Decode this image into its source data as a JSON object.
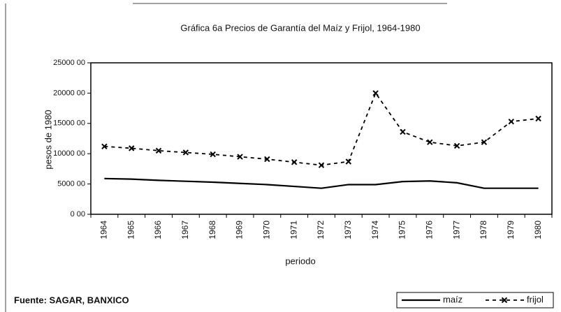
{
  "chart_data": {
    "type": "line",
    "title": "Gráfica 6a Precios de Garantía del Maíz y Frijol, 1964-1980",
    "y_label": "pesos de 1980",
    "x_label": "periodo",
    "source": "Fuente: SAGAR, BANXICO",
    "categories": [
      "1964",
      "1965",
      "1966",
      "1967",
      "1968",
      "1969",
      "1970",
      "1971",
      "1972",
      "1973",
      "1974",
      "1975",
      "1976",
      "1977",
      "1978",
      "1979",
      "1980"
    ],
    "series": [
      {
        "name": "maíz",
        "color": "#000000",
        "style": "solid",
        "values": [
          5900,
          5800,
          5600,
          5450,
          5300,
          5100,
          4900,
          4600,
          4300,
          4900,
          4900,
          5400,
          5500,
          5200,
          4300,
          4300,
          4300
        ]
      },
      {
        "name": "frijol",
        "color": "#000000",
        "style": "dashed",
        "marker": "x",
        "values": [
          11200,
          10900,
          10500,
          10200,
          9900,
          9500,
          9100,
          8600,
          8100,
          8700,
          20000,
          13600,
          11900,
          11300,
          11900,
          15300,
          15800
        ]
      }
    ],
    "ylim": [
      0,
      25000
    ],
    "yticks": [
      {
        "value": 0,
        "label": "0 00"
      },
      {
        "value": 5000,
        "label": "5000 00"
      },
      {
        "value": 10000,
        "label": "10000 00"
      },
      {
        "value": 15000,
        "label": "15000 00"
      },
      {
        "value": 20000,
        "label": "20000 00"
      },
      {
        "value": 25000,
        "label": "25000 00"
      }
    ],
    "grid": false,
    "legend": "bottom-right"
  }
}
